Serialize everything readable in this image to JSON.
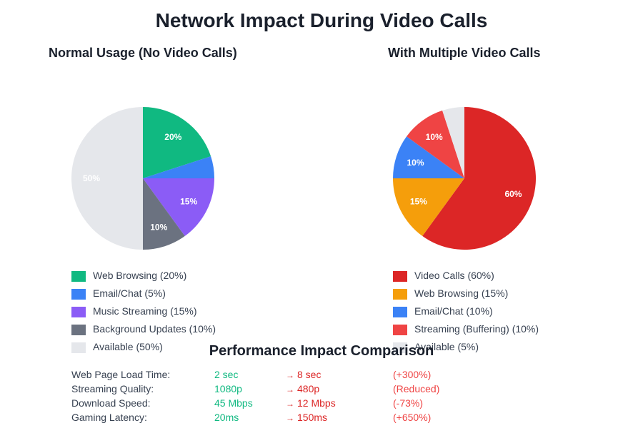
{
  "title": "Network Impact During Video Calls",
  "chart_data": [
    {
      "type": "pie",
      "title": "Normal Usage (No Video Calls)",
      "start_angle": "12 o'clock, clockwise",
      "categories": [
        "Web Browsing",
        "Email/Chat",
        "Music Streaming",
        "Background Updates",
        "Available"
      ],
      "values": [
        20,
        5,
        15,
        10,
        50
      ],
      "colors": [
        "#10b981",
        "#3b82f6",
        "#8b5cf6",
        "#6b7280",
        "#e5e7eb"
      ],
      "slice_labels": [
        "20%",
        "",
        "15%",
        "10%",
        "50%"
      ],
      "legend": [
        "Web Browsing (20%)",
        "Email/Chat (5%)",
        "Music Streaming (15%)",
        "Background Updates (10%)",
        "Available (50%)"
      ],
      "legend_position": "bottom"
    },
    {
      "type": "pie",
      "title": "With Multiple Video Calls",
      "start_angle": "12 o'clock, clockwise",
      "categories": [
        "Video Calls",
        "Web Browsing",
        "Email/Chat",
        "Streaming (Buffering)",
        "Available"
      ],
      "values": [
        60,
        15,
        10,
        10,
        5
      ],
      "colors": [
        "#dc2626",
        "#f59e0b",
        "#3b82f6",
        "#ef4444",
        "#e5e7eb"
      ],
      "slice_labels": [
        "60%",
        "15%",
        "10%",
        "10%",
        ""
      ],
      "legend": [
        "Video Calls (60%)",
        "Web Browsing (15%)",
        "Email/Chat (10%)",
        "Streaming (Buffering) (10%)",
        "Available (5%)"
      ],
      "legend_position": "bottom"
    }
  ],
  "comparison": {
    "title": "Performance Impact Comparison",
    "arrow": "→",
    "rows": [
      {
        "label": "Web Page Load Time:",
        "before": "2 sec",
        "after": "8 sec",
        "impact": "(+300%)"
      },
      {
        "label": "Streaming Quality:",
        "before": "1080p",
        "after": "480p",
        "impact": "(Reduced)"
      },
      {
        "label": "Download Speed:",
        "before": "45 Mbps",
        "after": "12 Mbps",
        "impact": "(-73%)"
      },
      {
        "label": "Gaming Latency:",
        "before": "20ms",
        "after": "150ms",
        "impact": "(+650%)"
      }
    ]
  },
  "colors": {
    "before": "#10b981",
    "after": "#dc2626",
    "impact": "#ef4444"
  }
}
